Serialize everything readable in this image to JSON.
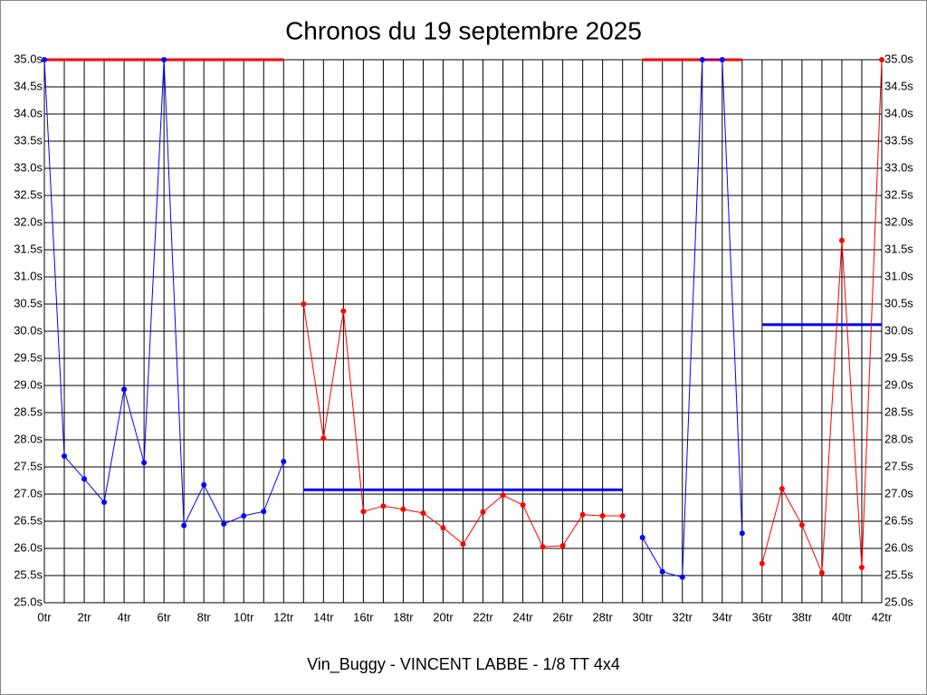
{
  "chart_data": {
    "type": "line",
    "title": "Chronos du 19 septembre 2025",
    "xlabel": "Vin_Buggy - VINCENT LABBE - 1/8 TT 4x4",
    "xlim": [
      0,
      42
    ],
    "xticks": [
      {
        "value": 0,
        "label": "0tr"
      },
      {
        "value": 2,
        "label": "2tr"
      },
      {
        "value": 4,
        "label": "4tr"
      },
      {
        "value": 6,
        "label": "6tr"
      },
      {
        "value": 8,
        "label": "8tr"
      },
      {
        "value": 10,
        "label": "10tr"
      },
      {
        "value": 12,
        "label": "12tr"
      },
      {
        "value": 14,
        "label": "14tr"
      },
      {
        "value": 16,
        "label": "16tr"
      },
      {
        "value": 18,
        "label": "18tr"
      },
      {
        "value": 20,
        "label": "20tr"
      },
      {
        "value": 22,
        "label": "22tr"
      },
      {
        "value": 24,
        "label": "24tr"
      },
      {
        "value": 26,
        "label": "26tr"
      },
      {
        "value": 28,
        "label": "28tr"
      },
      {
        "value": 30,
        "label": "30tr"
      },
      {
        "value": 32,
        "label": "32tr"
      },
      {
        "value": 34,
        "label": "34tr"
      },
      {
        "value": 36,
        "label": "36tr"
      },
      {
        "value": 38,
        "label": "38tr"
      },
      {
        "value": 40,
        "label": "40tr"
      },
      {
        "value": 42,
        "label": "42tr"
      }
    ],
    "xminorticks": [
      1,
      3,
      5,
      7,
      9,
      11,
      13,
      15,
      17,
      19,
      21,
      23,
      25,
      27,
      29,
      31,
      33,
      35,
      37,
      39,
      41
    ],
    "ylim": [
      25,
      35
    ],
    "yticks": [
      {
        "value": 25,
        "label": "25.0s"
      },
      {
        "value": 25.5,
        "label": "25.5s"
      },
      {
        "value": 26,
        "label": "26.0s"
      },
      {
        "value": 26.5,
        "label": "26.5s"
      },
      {
        "value": 27,
        "label": "27.0s"
      },
      {
        "value": 27.5,
        "label": "27.5s"
      },
      {
        "value": 28,
        "label": "28.0s"
      },
      {
        "value": 28.5,
        "label": "28.5s"
      },
      {
        "value": 29,
        "label": "29.0s"
      },
      {
        "value": 29.5,
        "label": "29.5s"
      },
      {
        "value": 30,
        "label": "30.0s"
      },
      {
        "value": 30.5,
        "label": "30.5s"
      },
      {
        "value": 31,
        "label": "31.0s"
      },
      {
        "value": 31.5,
        "label": "31.5s"
      },
      {
        "value": 32,
        "label": "32.0s"
      },
      {
        "value": 32.5,
        "label": "32.5s"
      },
      {
        "value": 33,
        "label": "33.0s"
      },
      {
        "value": 33.5,
        "label": "33.5s"
      },
      {
        "value": 34,
        "label": "34.0s"
      },
      {
        "value": 34.5,
        "label": "34.5s"
      },
      {
        "value": 35,
        "label": "35.0s"
      }
    ],
    "grid": true,
    "series": [
      {
        "color": "#0000ff",
        "x": [
          0,
          1,
          2,
          3,
          4,
          5,
          6,
          7,
          8,
          9,
          10,
          11,
          12
        ],
        "values": [
          35,
          27.7,
          27.28,
          26.85,
          28.93,
          27.58,
          35,
          26.42,
          27.17,
          26.45,
          26.6,
          26.68,
          27.6
        ]
      },
      {
        "color": "#ff0000",
        "x": [
          13,
          14,
          15,
          16,
          17,
          18,
          19,
          20,
          21,
          22,
          23,
          24,
          25,
          26,
          27,
          28,
          29
        ],
        "values": [
          30.5,
          28.03,
          30.37,
          26.68,
          26.78,
          26.72,
          26.65,
          26.38,
          26.08,
          26.67,
          26.98,
          26.8,
          26.03,
          26.05,
          26.62,
          26.6,
          26.6
        ]
      },
      {
        "color": "#0000ff",
        "x": [
          30,
          31,
          32,
          33,
          34,
          35
        ],
        "values": [
          26.2,
          25.57,
          25.47,
          35,
          35,
          26.28
        ]
      },
      {
        "color": "#ff0000",
        "x": [
          36,
          37,
          38,
          39,
          40,
          41,
          42
        ],
        "values": [
          25.72,
          27.1,
          26.43,
          25.55,
          31.67,
          25.65,
          35
        ]
      }
    ],
    "mean_lines": [
      {
        "color": "#ff0000",
        "x": [
          0,
          12
        ],
        "value": 35
      },
      {
        "color": "#0000ff",
        "x": [
          13,
          29
        ],
        "value": 27.08
      },
      {
        "color": "#ff0000",
        "x": [
          30,
          35
        ],
        "value": 35
      },
      {
        "color": "#0000ff",
        "x": [
          36,
          42
        ],
        "value": 30.12
      }
    ]
  }
}
